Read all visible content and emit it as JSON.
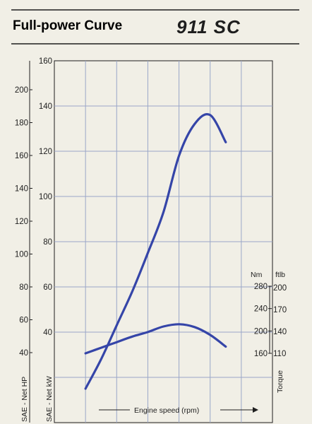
{
  "header": {
    "title": "Full-power Curve",
    "logo_text": "911 SC"
  },
  "colors": {
    "background": "#f1efe6",
    "grid": "#9aa6c8",
    "curve": "#3545a8",
    "ink": "#1e1e1e"
  },
  "chart_data": {
    "type": "line",
    "xlabel": "Engine speed (rpm)",
    "x_divisions": 7,
    "axes": {
      "sae_net_hp": {
        "label": "SAE - Net HP",
        "ticks": [
          40,
          60,
          80,
          100,
          120,
          140,
          160,
          180,
          200
        ]
      },
      "sae_net_kw": {
        "label": "SAE - Net kW",
        "ticks": [
          40,
          60,
          80,
          100,
          120,
          140,
          160
        ]
      },
      "torque_nm": {
        "unit": "Nm",
        "ticks": [
          160,
          200,
          240,
          280
        ]
      },
      "torque_ftlb": {
        "unit": "ftlb",
        "ticks": [
          110,
          140,
          170,
          200
        ]
      },
      "torque_label": "Torque"
    },
    "series": [
      {
        "axis": "sae_net_kw",
        "x": [
          1,
          1.5,
          2,
          2.5,
          3,
          3.5,
          4,
          4.5,
          5,
          5.5
        ],
        "values": [
          15,
          28,
          43,
          58,
          75,
          93,
          118,
          132,
          136,
          124
        ]
      },
      {
        "axis": "torque_nm",
        "x": [
          1,
          1.5,
          2,
          2.5,
          3,
          3.5,
          4,
          4.5,
          5,
          5.5
        ],
        "values": [
          160,
          170,
          180,
          190,
          198,
          208,
          212,
          207,
          193,
          172
        ]
      }
    ]
  }
}
